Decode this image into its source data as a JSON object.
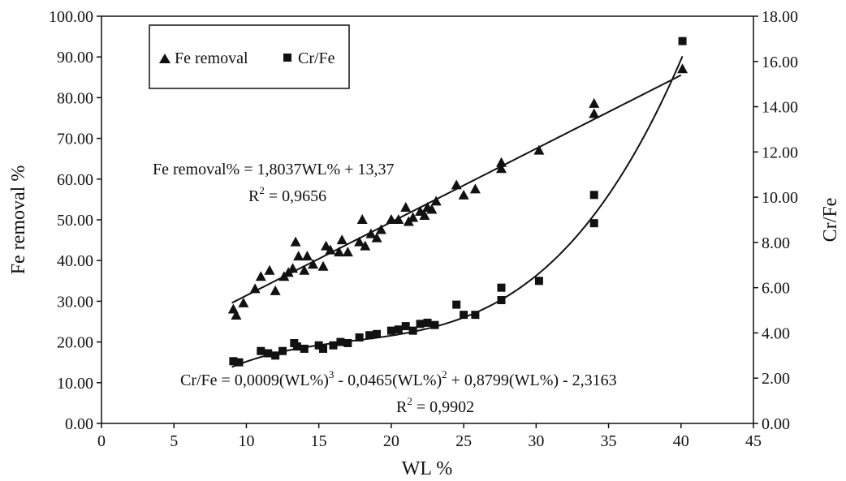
{
  "chart_data": {
    "type": "scatter",
    "xlabel": "WL %",
    "ylabel_left": "Fe removal %",
    "ylabel_right": "Cr/Fe",
    "xlim": [
      0,
      45
    ],
    "x_ticks": [
      "0",
      "5",
      "10",
      "15",
      "20",
      "25",
      "30",
      "35",
      "40",
      "45"
    ],
    "ylim_left": [
      0,
      100
    ],
    "y_left_ticks": [
      "0.00",
      "10.00",
      "20.00",
      "30.00",
      "40.00",
      "50.00",
      "60.00",
      "70.00",
      "80.00",
      "90.00",
      "100.00"
    ],
    "ylim_right": [
      0,
      18
    ],
    "y_right_ticks": [
      "0.00",
      "2.00",
      "4.00",
      "6.00",
      "8.00",
      "10.00",
      "12.00",
      "14.00",
      "16.00",
      "18.00"
    ],
    "grid": false,
    "legend_position": "top-left",
    "series": [
      {
        "name": "Fe removal",
        "marker": "triangle",
        "axis": "left",
        "color": "#111111",
        "points": [
          [
            9.1,
            28.0
          ],
          [
            9.3,
            26.5
          ],
          [
            9.8,
            29.5
          ],
          [
            10.6,
            33.0
          ],
          [
            11.0,
            36.0
          ],
          [
            11.6,
            37.5
          ],
          [
            12.0,
            32.5
          ],
          [
            12.6,
            36.0
          ],
          [
            12.9,
            37.0
          ],
          [
            13.2,
            38.0
          ],
          [
            13.4,
            44.5
          ],
          [
            13.6,
            41.0
          ],
          [
            14.0,
            37.5
          ],
          [
            14.2,
            41.0
          ],
          [
            14.6,
            39.0
          ],
          [
            15.3,
            38.5
          ],
          [
            15.5,
            43.5
          ],
          [
            15.8,
            42.5
          ],
          [
            16.4,
            42.0
          ],
          [
            16.6,
            45.0
          ],
          [
            17.0,
            42.0
          ],
          [
            17.8,
            44.5
          ],
          [
            18.0,
            50.0
          ],
          [
            18.2,
            43.5
          ],
          [
            18.6,
            46.5
          ],
          [
            19.0,
            45.5
          ],
          [
            19.3,
            47.5
          ],
          [
            20.0,
            50.0
          ],
          [
            20.5,
            50.0
          ],
          [
            21.0,
            53.0
          ],
          [
            21.2,
            49.5
          ],
          [
            21.5,
            50.5
          ],
          [
            22.0,
            52.0
          ],
          [
            22.3,
            51.0
          ],
          [
            22.5,
            53.0
          ],
          [
            22.8,
            52.5
          ],
          [
            23.1,
            54.5
          ],
          [
            24.5,
            58.5
          ],
          [
            25.0,
            56.0
          ],
          [
            25.8,
            57.5
          ],
          [
            27.6,
            64.0
          ],
          [
            27.6,
            62.5
          ],
          [
            30.2,
            67.0
          ],
          [
            34.0,
            78.5
          ],
          [
            34.0,
            76.0
          ],
          [
            40.1,
            87.0
          ]
        ]
      },
      {
        "name": "Cr/Fe",
        "marker": "square",
        "axis": "right",
        "color": "#111111",
        "points": [
          [
            9.1,
            2.75
          ],
          [
            9.5,
            2.7
          ],
          [
            11.0,
            3.2
          ],
          [
            11.5,
            3.1
          ],
          [
            12.0,
            3.0
          ],
          [
            12.5,
            3.2
          ],
          [
            13.3,
            3.55
          ],
          [
            13.5,
            3.4
          ],
          [
            14.0,
            3.3
          ],
          [
            15.0,
            3.45
          ],
          [
            15.3,
            3.3
          ],
          [
            16.0,
            3.45
          ],
          [
            16.5,
            3.6
          ],
          [
            17.0,
            3.55
          ],
          [
            17.8,
            3.8
          ],
          [
            18.5,
            3.9
          ],
          [
            19.0,
            3.95
          ],
          [
            20.0,
            4.1
          ],
          [
            20.5,
            4.15
          ],
          [
            21.0,
            4.3
          ],
          [
            21.5,
            4.1
          ],
          [
            22.0,
            4.4
          ],
          [
            22.5,
            4.45
          ],
          [
            23.0,
            4.35
          ],
          [
            24.5,
            5.25
          ],
          [
            25.0,
            4.8
          ],
          [
            25.8,
            4.8
          ],
          [
            27.6,
            6.0
          ],
          [
            27.6,
            5.45
          ],
          [
            30.2,
            6.3
          ],
          [
            34.0,
            10.1
          ],
          [
            34.0,
            8.85
          ],
          [
            40.1,
            16.9
          ]
        ]
      }
    ],
    "fit_lines": [
      {
        "series": "Fe removal",
        "type": "linear",
        "axis": "left",
        "coef": [
          13.37,
          1.8037
        ],
        "x_range": [
          9,
          40
        ]
      },
      {
        "series": "Cr/Fe",
        "type": "poly3",
        "axis": "right",
        "coef": [
          -2.3163,
          0.8799,
          -0.0465,
          0.0009
        ],
        "x_range": [
          9,
          40.1
        ]
      }
    ],
    "annotations": {
      "fe_equation": "Fe removal% = 1,8037WL% + 13,37",
      "fe_r2_label": "R",
      "fe_r2_sup": "2",
      "fe_r2_value": " = 0,9656",
      "cr_eq_part1": "Cr/Fe = 0,0009(WL%)",
      "cr_eq_sup1": "3",
      "cr_eq_part2": " - 0,0465(WL%)",
      "cr_eq_sup2": "2",
      "cr_eq_part3": " + 0,8799(WL%) - 2,3163",
      "cr_r2_label": "R",
      "cr_r2_sup": "2",
      "cr_r2_value": " = 0,9902"
    }
  }
}
